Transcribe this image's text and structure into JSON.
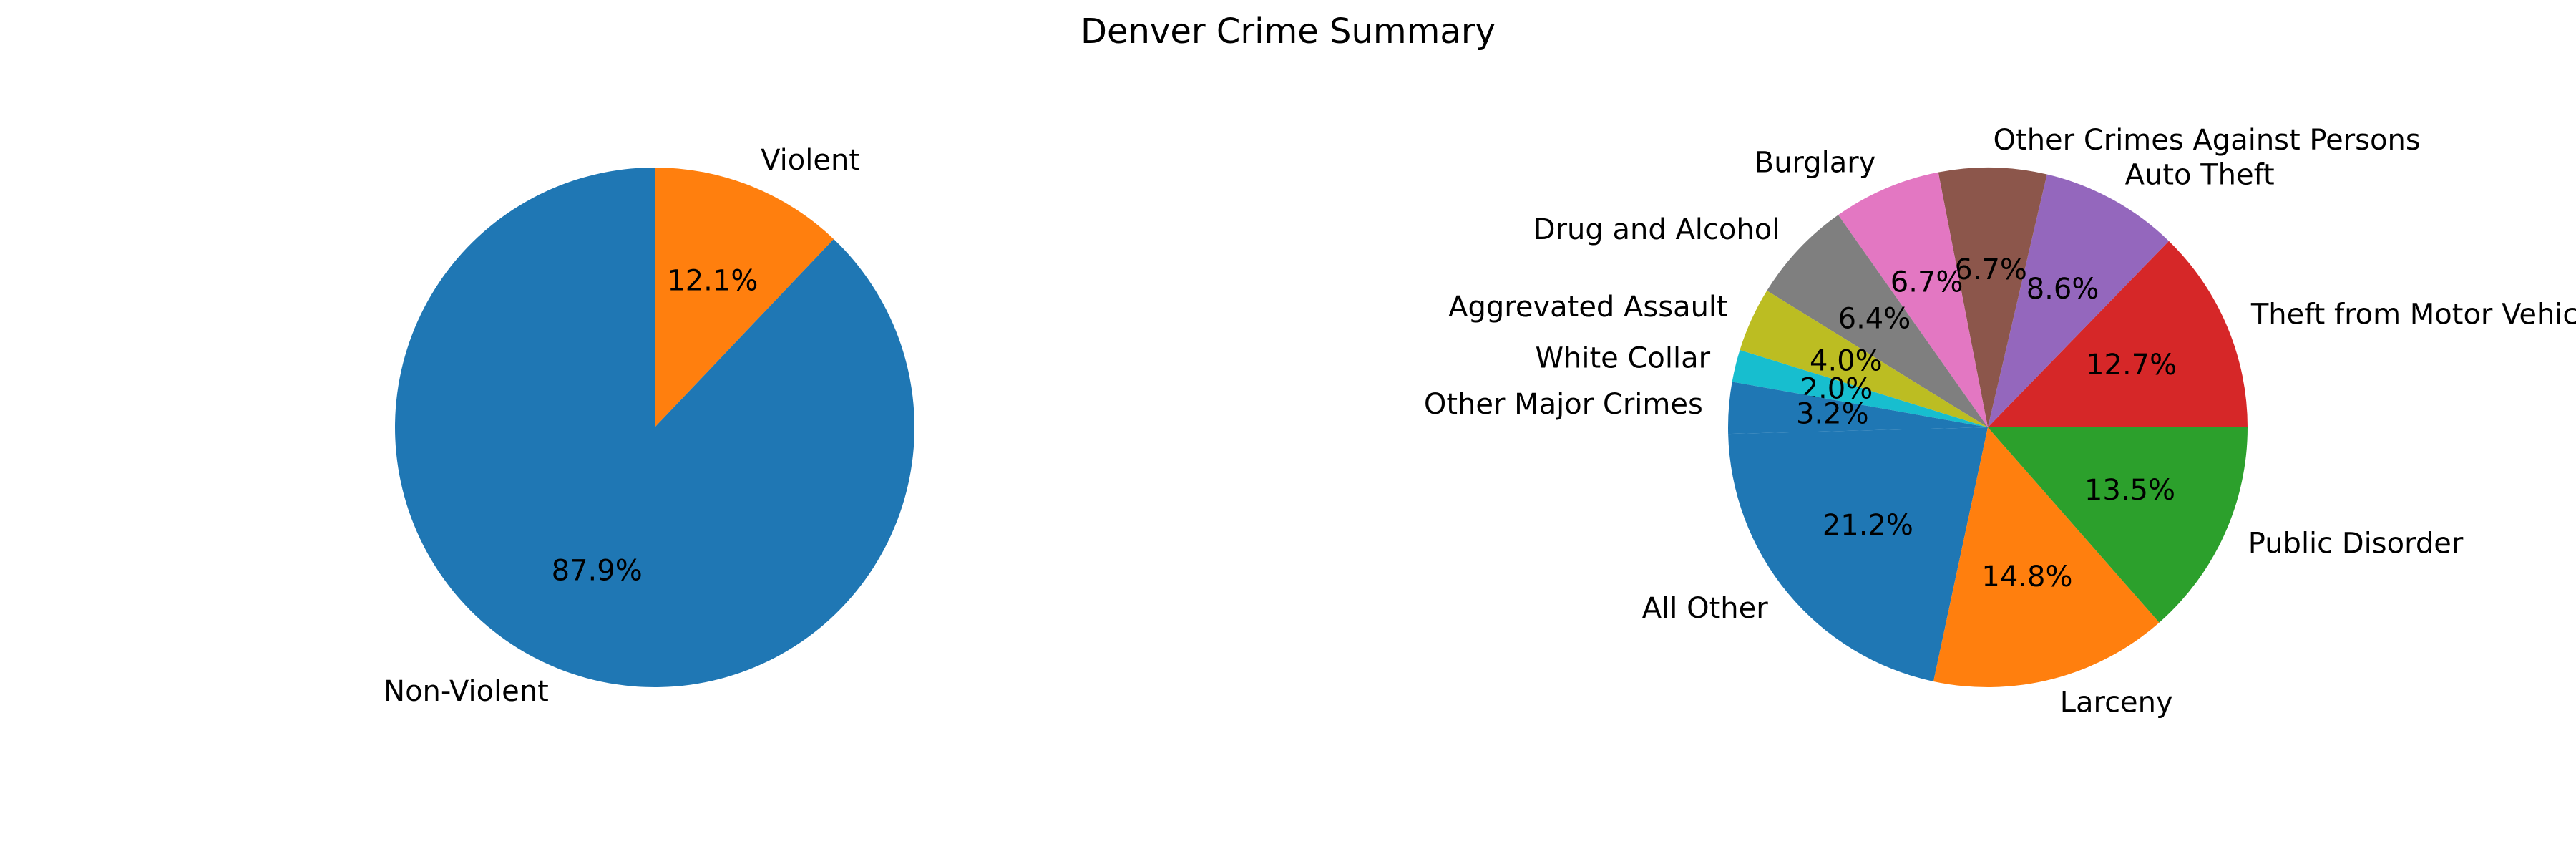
{
  "figure": {
    "title": "Denver Crime Summary"
  },
  "chart_data": [
    {
      "type": "pie",
      "title": "",
      "start_angle_deg": 90,
      "direction": "clockwise",
      "slices": [
        {
          "label": "Violent",
          "value": 12.1,
          "pct_label": "12.1%",
          "color": "#ff7f0e"
        },
        {
          "label": "Non-Violent",
          "value": 87.9,
          "pct_label": "87.9%",
          "color": "#1f77b4"
        }
      ]
    },
    {
      "type": "pie",
      "title": "",
      "start_angle_deg": 0,
      "direction": "counterclockwise",
      "slices": [
        {
          "label": "Theft from Motor Vehicle",
          "value": 12.7,
          "pct_label": "12.7%",
          "color": "#d62728"
        },
        {
          "label": "Auto Theft",
          "value": 8.6,
          "pct_label": "8.6%",
          "color": "#9467bd"
        },
        {
          "label": "Other Crimes Against Persons",
          "value": 6.7,
          "pct_label": "6.7%",
          "color": "#8c564b"
        },
        {
          "label": "Burglary",
          "value": 6.7,
          "pct_label": "6.7%",
          "color": "#e377c2"
        },
        {
          "label": "Drug and Alcohol",
          "value": 6.4,
          "pct_label": "6.4%",
          "color": "#7f7f7f"
        },
        {
          "label": "Aggrevated Assault",
          "value": 4.0,
          "pct_label": "4.0%",
          "color": "#bcbd22"
        },
        {
          "label": "White Collar",
          "value": 2.0,
          "pct_label": "2.0%",
          "color": "#17becf"
        },
        {
          "label": "Other Major Crimes",
          "value": 3.2,
          "pct_label": "3.2%",
          "color": "#1f77b4"
        },
        {
          "label": "All Other",
          "value": 21.2,
          "pct_label": "21.2%",
          "color": "#1f77b4"
        },
        {
          "label": "Larceny",
          "value": 14.8,
          "pct_label": "14.8%",
          "color": "#ff7f0e"
        },
        {
          "label": "Public Disorder",
          "value": 13.5,
          "pct_label": "13.5%",
          "color": "#2ca02c"
        }
      ]
    }
  ]
}
